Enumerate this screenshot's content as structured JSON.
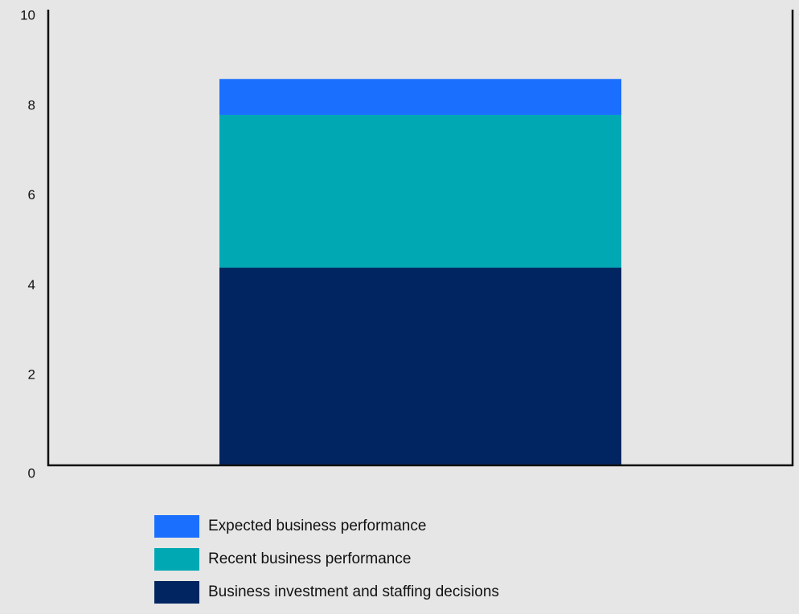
{
  "chart_data": {
    "type": "bar",
    "stacked": true,
    "title": "",
    "xlabel": "",
    "ylabel": "",
    "categories": [
      ""
    ],
    "ylim": [
      0,
      10
    ],
    "yticks": [
      0,
      2,
      4,
      6,
      8,
      10
    ],
    "grid": false,
    "legend_position": "bottom",
    "series": [
      {
        "name": "Business investment and staffing decisions",
        "values": [
          4.4
        ],
        "color": "#002560"
      },
      {
        "name": "Recent business performance",
        "values": [
          3.4
        ],
        "color": "#00a8b4"
      },
      {
        "name": "Expected business performance",
        "values": [
          0.8
        ],
        "color": "#1a6fff"
      }
    ]
  },
  "legend": {
    "items": [
      {
        "label": "Expected business performance",
        "color": "#1a6fff"
      },
      {
        "label": "Recent business performance",
        "color": "#00a8b4"
      },
      {
        "label": "Business investment and staffing decisions",
        "color": "#002560"
      }
    ]
  }
}
